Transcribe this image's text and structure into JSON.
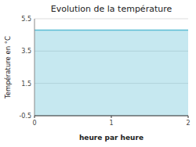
{
  "chart_data": {
    "type": "area",
    "title": "Evolution de la température",
    "x_label": "heure par heure",
    "y_label": "Température en °C",
    "x": [
      0,
      2
    ],
    "series": [
      {
        "values": [
          4.8,
          4.8
        ],
        "color": "#5bbcd4"
      }
    ],
    "xlim": [
      0,
      2
    ],
    "xticks": [
      0,
      1,
      2
    ],
    "ylim": [
      -0.5,
      5.5
    ],
    "yticks": [
      -0.5,
      1.5,
      3.5,
      5.5
    ],
    "grid": true
  }
}
